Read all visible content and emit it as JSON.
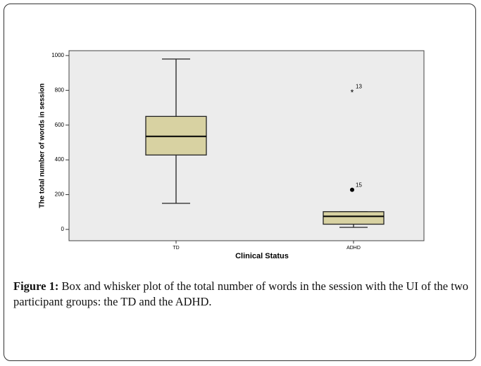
{
  "chart_data": {
    "type": "box",
    "xlabel": "Clinical Status",
    "ylabel": "The total number of words in session",
    "categories": [
      "TD",
      "ADHD"
    ],
    "boxes": [
      {
        "min": 150,
        "q1": 428,
        "median": 535,
        "q3": 650,
        "max": 980,
        "outliers": []
      },
      {
        "min": 12,
        "q1": 30,
        "median": 75,
        "q3": 102,
        "max": 102,
        "outliers": [
          {
            "value": 228,
            "label": "15",
            "marker": "circle"
          },
          {
            "value": 795,
            "label": "13",
            "marker": "star"
          }
        ]
      }
    ],
    "color": "#d8d2a2",
    "ylim": [
      -65,
      1028
    ],
    "yticks": [
      0,
      200,
      400,
      600,
      800,
      1000
    ]
  },
  "caption": {
    "label": "Figure 1:",
    "text": "Box and whisker plot of the total number of words in the session with the UI of the two participant groups: the TD and the ADHD."
  }
}
